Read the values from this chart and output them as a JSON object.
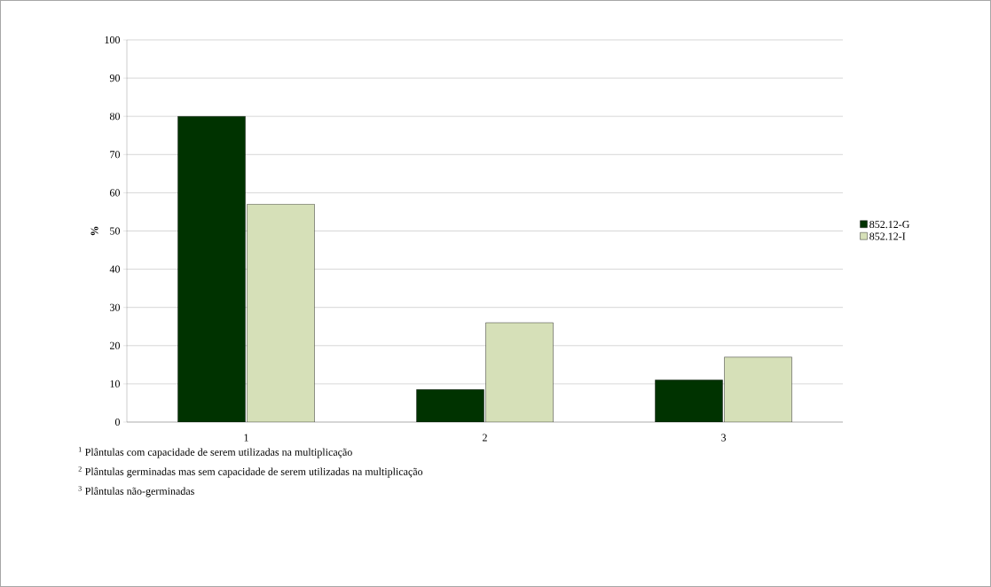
{
  "chart_data": {
    "type": "bar",
    "ylabel": "%",
    "categories": [
      "1",
      "2",
      "3"
    ],
    "series": [
      {
        "name": "852.12-G",
        "color": "#003300",
        "values": [
          80,
          8.5,
          11
        ]
      },
      {
        "name": "852.12-I",
        "color": "#d6e0b8",
        "values": [
          57,
          26,
          17
        ]
      }
    ],
    "ylim": [
      0,
      100
    ],
    "yticks": [
      0,
      10,
      20,
      30,
      40,
      50,
      60,
      70,
      80,
      90,
      100
    ],
    "grid": "y",
    "legend": "right",
    "annotations": [
      "$^{1}$ Plântulas com capacidade de serem utilizadas na multiplicação",
      "$^{2}$ Plântulas germinadas mas sem capacidade de serem utilizadas na multiplicação",
      "$^{3}$ Plântulas não-germinadas"
    ]
  }
}
